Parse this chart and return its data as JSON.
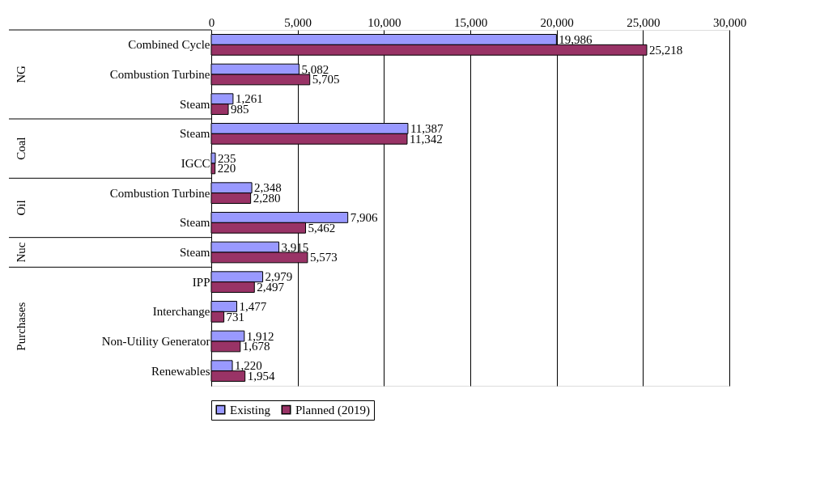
{
  "chart_data": {
    "type": "bar",
    "orientation": "horizontal",
    "categories": [
      "Combined Cycle",
      "Combustion Turbine",
      "Steam",
      "Steam",
      "IGCC",
      "Combustion Turbine",
      "Steam",
      "Steam",
      "IPP",
      "Interchange",
      "Non-Utility Generator",
      "Renewables"
    ],
    "series": [
      {
        "name": "Existing",
        "color": "#9999ff",
        "values": [
          19986,
          5082,
          1261,
          11387,
          235,
          2348,
          7906,
          3915,
          2979,
          1477,
          1912,
          1220
        ],
        "value_labels": [
          "19,986",
          "5,082",
          "1,261",
          "11,387",
          "235",
          "2,348",
          "7,906",
          "3,915",
          "2,979",
          "1,477",
          "1,912",
          "1,220"
        ]
      },
      {
        "name": "Planned (2019)",
        "color": "#993366",
        "values": [
          25218,
          5705,
          985,
          11342,
          220,
          2280,
          5462,
          5573,
          2497,
          731,
          1678,
          1954
        ],
        "value_labels": [
          "25,218",
          "5,705",
          "985",
          "11,342",
          "220",
          "2,280",
          "5,462",
          "5,573",
          "2,497",
          "731",
          "1,678",
          "1,954"
        ]
      }
    ],
    "xlim": [
      0,
      30000
    ],
    "xticks": [
      0,
      {
        "value": 5000,
        "label": "5,000"
      },
      {
        "value": 10000,
        "label": "10,000"
      },
      {
        "value": 15000,
        "label": "15,000"
      },
      {
        "value": 20000,
        "label": "20,000"
      },
      {
        "value": 25000,
        "label": "25,000"
      },
      {
        "value": 30000,
        "label": "30,000"
      }
    ],
    "grid": "x",
    "legend": "bottom",
    "annotations": [
      "NG",
      "Coal",
      "Oil",
      "Nuc",
      "Purchases"
    ]
  }
}
